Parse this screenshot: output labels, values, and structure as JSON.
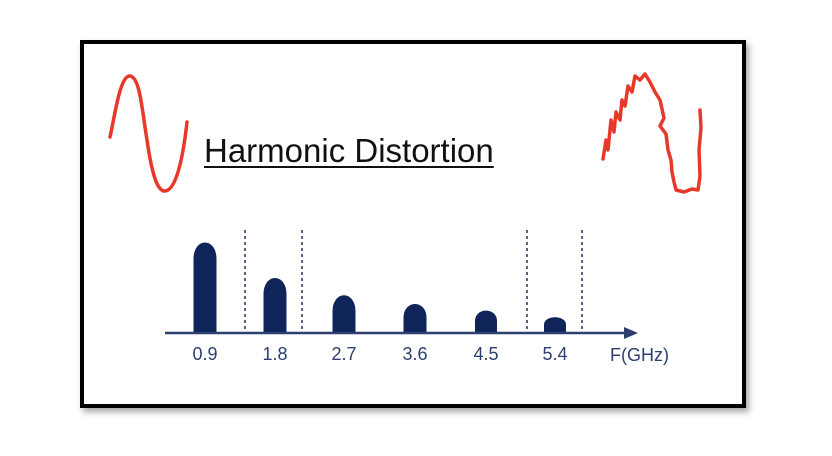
{
  "title": "Harmonic Distortion",
  "colors": {
    "spectrum": "#0f2459",
    "axis": "#2c3f6e",
    "waveform": "#e8382a"
  },
  "axis": {
    "label": "F(GHz)",
    "direction": "right-arrow"
  },
  "harmonics": [
    {
      "freq": "0.9",
      "level": 1.0
    },
    {
      "freq": "1.8",
      "level": 0.63
    },
    {
      "freq": "2.7",
      "level": 0.45
    },
    {
      "freq": "3.6",
      "level": 0.35
    },
    {
      "freq": "4.5",
      "level": 0.27
    },
    {
      "freq": "5.4",
      "level": 0.19
    }
  ],
  "waveforms": [
    {
      "name": "clean-sine",
      "shape": "sine"
    },
    {
      "name": "distorted",
      "shape": "clipped-noisy"
    }
  ]
}
